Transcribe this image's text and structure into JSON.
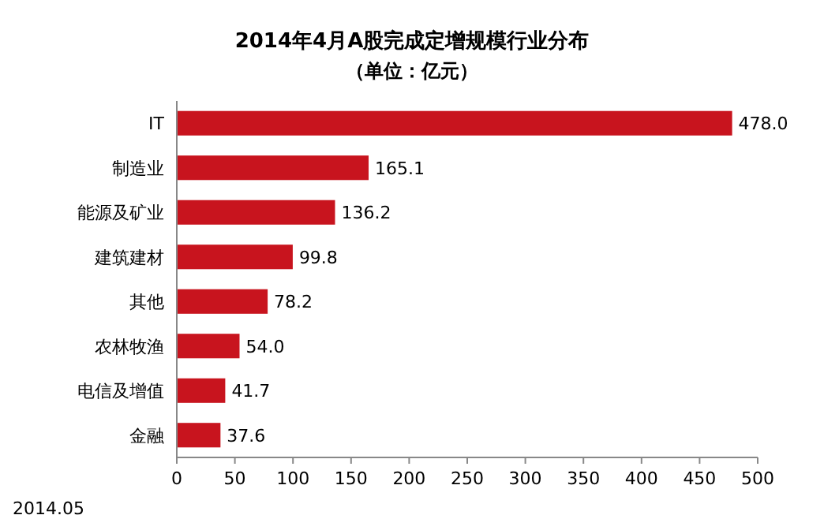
{
  "chart_data": {
    "type": "bar",
    "orientation": "horizontal",
    "title": "2014年4月A股完成定增规模行业分布",
    "subtitle": "（单位：亿元）",
    "categories": [
      "IT",
      "制造业",
      "能源及矿业",
      "建筑建材",
      "其他",
      "农林牧渔",
      "电信及增值",
      "金融"
    ],
    "values": [
      478.0,
      165.1,
      136.2,
      99.8,
      78.2,
      54.0,
      41.7,
      37.6
    ],
    "value_labels": [
      "478.0",
      "165.1",
      "136.2",
      "99.8",
      "78.2",
      "54.0",
      "41.7",
      "37.6"
    ],
    "color": "#c8141e",
    "xlim": [
      0,
      500
    ],
    "xticks": [
      0,
      50,
      100,
      150,
      200,
      250,
      300,
      350,
      400,
      450,
      500
    ],
    "grid": false,
    "annotations": [
      "2014.05"
    ]
  }
}
